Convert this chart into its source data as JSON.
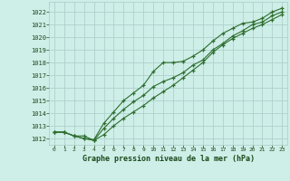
{
  "title": "Graphe pression niveau de la mer (hPa)",
  "bg_color": "#ceeee8",
  "grid_color": "#aaccc6",
  "line_color": "#2d6e2d",
  "marker_color": "#2d6e2d",
  "xlim": [
    -0.5,
    23.5
  ],
  "ylim": [
    1011.5,
    1022.8
  ],
  "xticks": [
    0,
    1,
    2,
    3,
    4,
    5,
    6,
    7,
    8,
    9,
    10,
    11,
    12,
    13,
    14,
    15,
    16,
    17,
    18,
    19,
    20,
    21,
    22,
    23
  ],
  "yticks": [
    1012,
    1013,
    1014,
    1015,
    1016,
    1017,
    1018,
    1019,
    1020,
    1021,
    1022
  ],
  "series1": [
    1012.5,
    1012.5,
    1012.2,
    1012.0,
    1011.9,
    1013.2,
    1014.1,
    1015.0,
    1015.6,
    1016.2,
    1017.3,
    1018.0,
    1018.0,
    1018.1,
    1018.5,
    1019.0,
    1019.7,
    1020.3,
    1020.7,
    1021.1,
    1021.2,
    1021.5,
    1022.0,
    1022.3
  ],
  "series2": [
    1012.5,
    1012.5,
    1012.2,
    1012.0,
    1011.85,
    1012.8,
    1013.6,
    1014.3,
    1014.9,
    1015.4,
    1016.1,
    1016.5,
    1016.8,
    1017.2,
    1017.8,
    1018.2,
    1019.0,
    1019.5,
    1020.1,
    1020.5,
    1021.0,
    1021.2,
    1021.7,
    1022.0
  ],
  "series3": [
    1012.5,
    1012.5,
    1012.2,
    1012.2,
    1011.85,
    1012.3,
    1013.0,
    1013.6,
    1014.1,
    1014.6,
    1015.2,
    1015.7,
    1016.2,
    1016.8,
    1017.4,
    1018.0,
    1018.8,
    1019.4,
    1019.9,
    1020.3,
    1020.7,
    1021.0,
    1021.4,
    1021.8
  ]
}
